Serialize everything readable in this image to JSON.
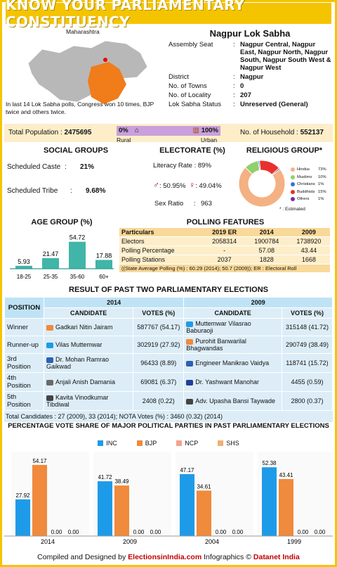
{
  "title": "KNOW YOUR PARLIAMENTARY CONSTITUENCY",
  "map": {
    "state": "Maharashtra",
    "note": "In last 14 Lok Sabha polls, Congress won 10 times, BJP twice and others twice."
  },
  "constituency": "Nagpur Lok Sabha",
  "info": [
    {
      "label": "Assembly Seat",
      "value": "Nagpur Central, Nagpur East, Nagpur North, Nagpur South, Nagpur South West & Nagpur West"
    },
    {
      "label": "District",
      "value": "Nagpur"
    },
    {
      "label": "No. of Towns",
      "value": "0"
    },
    {
      "label": "No. of Locality",
      "value": "207"
    },
    {
      "label": "Lok Sabha Status",
      "value": "Unreserved (General)"
    }
  ],
  "population": {
    "label": "Total Population :",
    "value": "2475695",
    "rural_pct": "0%",
    "urban_pct": "100%",
    "rural": "Rural",
    "urban": "Urban",
    "household_label": "No. of Household :",
    "household": "552137"
  },
  "social": {
    "title": "SOCIAL GROUPS",
    "sc_label": "Scheduled Caste",
    "sc": "21%",
    "st_label": "Scheduled Tribe",
    "st": "9.68%",
    "colon": ":"
  },
  "electorate": {
    "title": "ELECTORATE (%)",
    "literacy": "Literacy Rate : 89%",
    "male": ": 50.95%",
    "female": ": 49.04%",
    "sex_ratio_label": "Sex Ratio",
    "sex_ratio": "963",
    "colon": ":"
  },
  "religious": {
    "title": "RELIGIOUS GROUP*",
    "footnote": "* : Estimated",
    "items": [
      {
        "name": "Hindus",
        "pct": "73%",
        "value": 73,
        "color": "#f4b183"
      },
      {
        "name": "Muslims",
        "pct": "10%",
        "value": 10,
        "color": "#8fd16a"
      },
      {
        "name": "Christians",
        "pct": "1%",
        "value": 1,
        "color": "#2e75d6"
      },
      {
        "name": "Buddhists",
        "pct": "15%",
        "value": 15,
        "color": "#e8312e"
      },
      {
        "name": "Others",
        "pct": "1%",
        "value": 1,
        "color": "#7030a0"
      }
    ]
  },
  "age": {
    "title": "AGE GROUP (%)",
    "groups": [
      "18-25",
      "25-35",
      "35-60",
      "60+"
    ],
    "values": [
      5.93,
      21.47,
      54.72,
      17.88
    ],
    "labels": [
      "5.93",
      "21.47",
      "54.72",
      "17.88"
    ]
  },
  "polling": {
    "title": "POLLING FEATURES",
    "header": [
      "Particulars",
      "2019 ER",
      "2014",
      "2009"
    ],
    "rows": [
      [
        "Electors",
        "2058314",
        "1900784",
        "1738920"
      ],
      [
        "Polling Percentage",
        "-",
        "57.08",
        "43.44"
      ],
      [
        "Polling Stations",
        "2037",
        "1828",
        "1668"
      ]
    ],
    "note": "((State Average Polling (%) : 60.29 (2014); 50.7 (2009)); ER : Electoral Roll"
  },
  "results": {
    "title": "RESULT OF PAST TWO PARLIAMENTARY ELECTIONS",
    "position": "POSITION",
    "y2014": "2014",
    "y2009": "2009",
    "candidate": "CANDIDATE",
    "votes": "VOTES (%)",
    "rows": [
      {
        "pos": "Winner",
        "c14": "Gadkari Nitin Jairam",
        "p14": "BJP",
        "v14": "587767 (54.17)",
        "c09": "Muttemwar Vilasrao Baburaoji",
        "p09": "INC",
        "v09": "315148 (41.72)"
      },
      {
        "pos": "Runner-up",
        "c14": "Vilas Muttemwar",
        "p14": "INC",
        "v14": "302919 (27.92)",
        "c09": "Purohit Banwarilal Bhagwandas",
        "p09": "BJP",
        "v09": "290749 (38.49)"
      },
      {
        "pos": "3rd Position",
        "c14": "Dr. Mohan Ramrao Gaikwad",
        "p14": "BSP",
        "v14": "96433 (8.89)",
        "c09": "Engineer Manikrao Vaidya",
        "p09": "BSP",
        "v09": "118741 (15.72)"
      },
      {
        "pos": "4th Position",
        "c14": "Anjali Anish Damania",
        "p14": "AAP",
        "v14": "69081 (6.37)",
        "c09": "Dr. Yashwant Manohar",
        "p09": "RPI",
        "v09": "4455 (0.59)"
      },
      {
        "pos": "5th Position",
        "c14": "Kavita Vinodkumar Tibdiwal",
        "p14": "IND",
        "v14": "2408 (0.22)",
        "c09": "Adv. Upasha Bansi Taywade",
        "p09": "IND",
        "v09": "2800 (0.37)"
      }
    ],
    "footer": "Total Candidates : 27 (2009), 33 (2014); NOTA Votes (%) : 3460 (0.32) (2014)"
  },
  "chart_data": {
    "type": "bar",
    "title": "PERCENTAGE VOTE SHARE OF MAJOR POLITICAL PARTIES IN PAST PARLIAMENTARY ELECTIONS",
    "categories": [
      "2014",
      "2009",
      "2004",
      "1999"
    ],
    "series": [
      {
        "name": "INC",
        "color": "#1e9be8",
        "values": [
          27.92,
          41.72,
          47.17,
          52.38
        ]
      },
      {
        "name": "BJP",
        "color": "#f08a3c",
        "values": [
          54.17,
          38.49,
          34.61,
          43.41
        ]
      },
      {
        "name": "NCP",
        "color": "#f4a38a",
        "values": [
          0.0,
          0.0,
          0.0,
          0.0
        ]
      },
      {
        "name": "SHS",
        "color": "#f0b070",
        "values": [
          0.0,
          0.0,
          0.0,
          0.0
        ]
      }
    ],
    "ylim": [
      0,
      60
    ]
  },
  "footer": {
    "left": "Compiled and Designed by",
    "brand1": "ElectionsinIndia.com",
    "mid": "Infographics ©",
    "brand2": "Datanet India"
  }
}
